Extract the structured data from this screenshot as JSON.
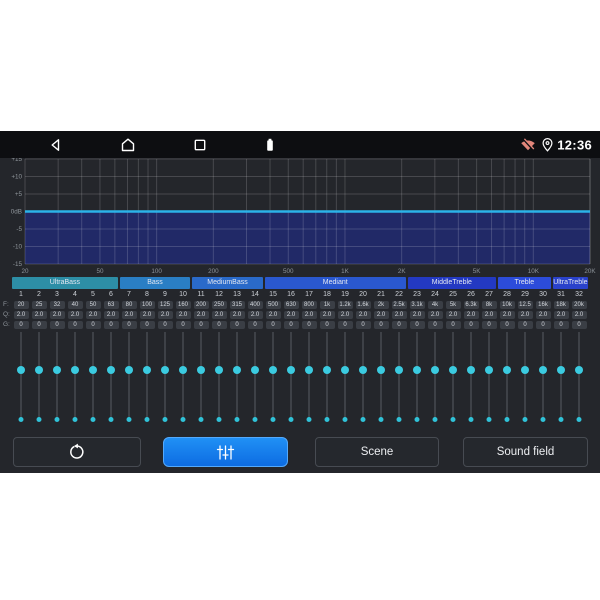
{
  "status_bar": {
    "time": "12:36",
    "icon_names": [
      "back",
      "home",
      "recents",
      "battery",
      "wifi-off",
      "location"
    ]
  },
  "chart_data": {
    "type": "area",
    "title": "",
    "x_scale": "log",
    "x_range_hz": [
      20,
      20000
    ],
    "y_range_db": [
      -15,
      15
    ],
    "grid": true,
    "y_ticks": [
      "+15",
      "+10",
      "+5",
      "0dB",
      "-5",
      "-10",
      "-15"
    ],
    "y_tick_db": [
      15,
      10,
      5,
      0,
      -5,
      -10,
      -15
    ],
    "x_ticks": [
      "20",
      "50",
      "100",
      "200",
      "500",
      "1K",
      "2K",
      "5K",
      "10K",
      "20K"
    ],
    "x_tick_freqs": [
      20,
      50,
      100,
      200,
      500,
      1000,
      2000,
      5000,
      10000,
      20000
    ],
    "series": [
      {
        "name": "eq-response",
        "x_hz": [
          20,
          20000
        ],
        "y_db": [
          0,
          0
        ],
        "fill_below": true
      }
    ]
  },
  "equalizer": {
    "row_labels": {
      "f": "F:",
      "q": "Q:",
      "g": "G:"
    },
    "groups": [
      {
        "label": "UltraBass",
        "band_count": 6,
        "color": "#2d8ea6"
      },
      {
        "label": "Bass",
        "band_count": 4,
        "color": "#2a7ec4"
      },
      {
        "label": "MediumBass",
        "band_count": 4,
        "color": "#2a6ac9"
      },
      {
        "label": "Mediant",
        "band_count": 8,
        "color": "#2a58cf"
      },
      {
        "label": "MiddleTreble",
        "band_count": 5,
        "color": "#2339c2"
      },
      {
        "label": "Treble",
        "band_count": 3,
        "color": "#2c4cda"
      },
      {
        "label": "UltraTreble",
        "band_count": 2,
        "color": "#2a42cb"
      }
    ],
    "band_numbers": [
      "1",
      "2",
      "3",
      "4",
      "5",
      "6",
      "7",
      "8",
      "9",
      "10",
      "11",
      "12",
      "13",
      "14",
      "15",
      "16",
      "17",
      "18",
      "19",
      "20",
      "21",
      "22",
      "23",
      "24",
      "25",
      "26",
      "27",
      "28",
      "29",
      "30",
      "31",
      "32"
    ],
    "freqs": [
      "20",
      "25",
      "32",
      "40",
      "50",
      "63",
      "80",
      "100",
      "125",
      "160",
      "200",
      "250",
      "315",
      "400",
      "500",
      "630",
      "800",
      "1k",
      "1.2k",
      "1.6k",
      "2k",
      "2.5k",
      "3.1k",
      "4k",
      "5k",
      "6.3k",
      "8k",
      "10k",
      "12.5",
      "16k",
      "18k",
      "20k"
    ],
    "q_values": [
      "2.0",
      "2.0",
      "2.0",
      "2.0",
      "2.0",
      "2.0",
      "2.0",
      "2.0",
      "2.0",
      "2.0",
      "2.0",
      "2.0",
      "2.0",
      "2.0",
      "2.0",
      "2.0",
      "2.0",
      "2.0",
      "2.0",
      "2.0",
      "2.0",
      "2.0",
      "2.0",
      "2.0",
      "2.0",
      "2.0",
      "2.0",
      "2.0",
      "2.0",
      "2.0",
      "2.0",
      "2.0"
    ],
    "g_values": [
      "0",
      "0",
      "0",
      "0",
      "0",
      "0",
      "0",
      "0",
      "0",
      "0",
      "0",
      "0",
      "0",
      "0",
      "0",
      "0",
      "0",
      "0",
      "0",
      "0",
      "0",
      "0",
      "0",
      "0",
      "0",
      "0",
      "0",
      "0",
      "0",
      "0",
      "0",
      "0"
    ],
    "slider_gain_db": 0
  },
  "toolbar": {
    "reset_icon": "reset-circular-arrow",
    "equalizer_icon": "eq-sliders",
    "equalizer_active": true,
    "scene_label": "Scene",
    "sound_field_label": "Sound field"
  },
  "colors": {
    "content_bg": "#24262b",
    "status_bg": "#0d0e11",
    "curve_line": "#2bb3e9",
    "curve_fill": "#212967",
    "grid_line": "rgba(255,255,255,0.16)",
    "accent_blue": "#1581ee",
    "slider_cyan": "#3bcbe0",
    "wifi_off": "#e2867b"
  }
}
